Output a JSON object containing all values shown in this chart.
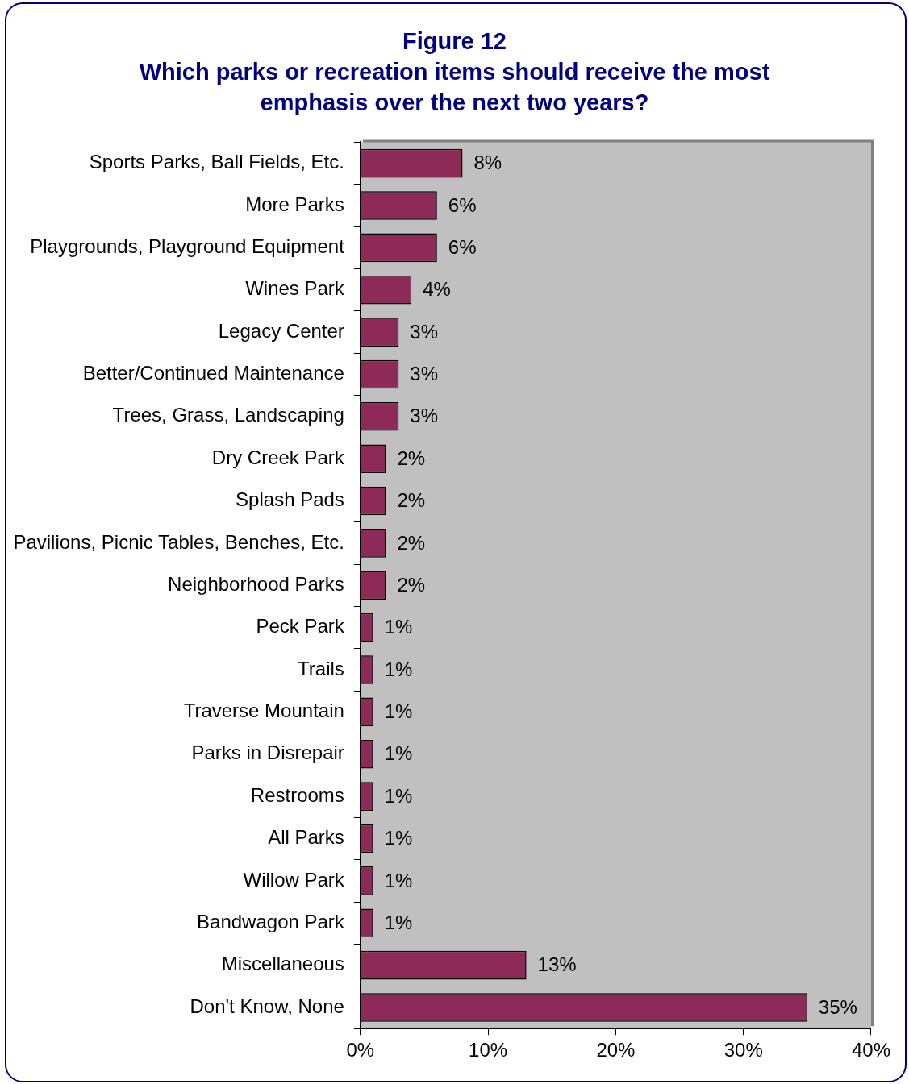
{
  "chart_data": {
    "type": "bar",
    "orientation": "horizontal",
    "title": "Figure 12",
    "subtitle": "Which parks or recreation items should receive the most emphasis over the next two years?",
    "categories": [
      "Sports Parks, Ball Fields, Etc.",
      "More Parks",
      "Playgrounds, Playground Equipment",
      "Wines Park",
      "Legacy Center",
      "Better/Continued Maintenance",
      "Trees, Grass, Landscaping",
      "Dry Creek Park",
      "Splash Pads",
      "Pavilions, Picnic Tables, Benches, Etc.",
      "Neighborhood Parks",
      "Peck Park",
      "Trails",
      "Traverse Mountain",
      "Parks in Disrepair",
      "Restrooms",
      "All Parks",
      "Willow Park",
      "Bandwagon Park",
      "Miscellaneous",
      "Don't Know, None"
    ],
    "values": [
      8,
      6,
      6,
      4,
      3,
      3,
      3,
      2,
      2,
      2,
      2,
      1,
      1,
      1,
      1,
      1,
      1,
      1,
      1,
      13,
      35
    ],
    "value_labels": [
      "8%",
      "6%",
      "6%",
      "4%",
      "3%",
      "3%",
      "3%",
      "2%",
      "2%",
      "2%",
      "2%",
      "1%",
      "1%",
      "1%",
      "1%",
      "1%",
      "1%",
      "1%",
      "1%",
      "13%",
      "35%"
    ],
    "color": "#8e2a58",
    "xlim": [
      0,
      40
    ],
    "xticks": [
      {
        "value": 0,
        "label": "0%"
      },
      {
        "value": 10,
        "label": "10%"
      },
      {
        "value": 20,
        "label": "20%"
      },
      {
        "value": 30,
        "label": "30%"
      },
      {
        "value": 40,
        "label": "40%"
      }
    ],
    "grid": false,
    "legend": false
  }
}
